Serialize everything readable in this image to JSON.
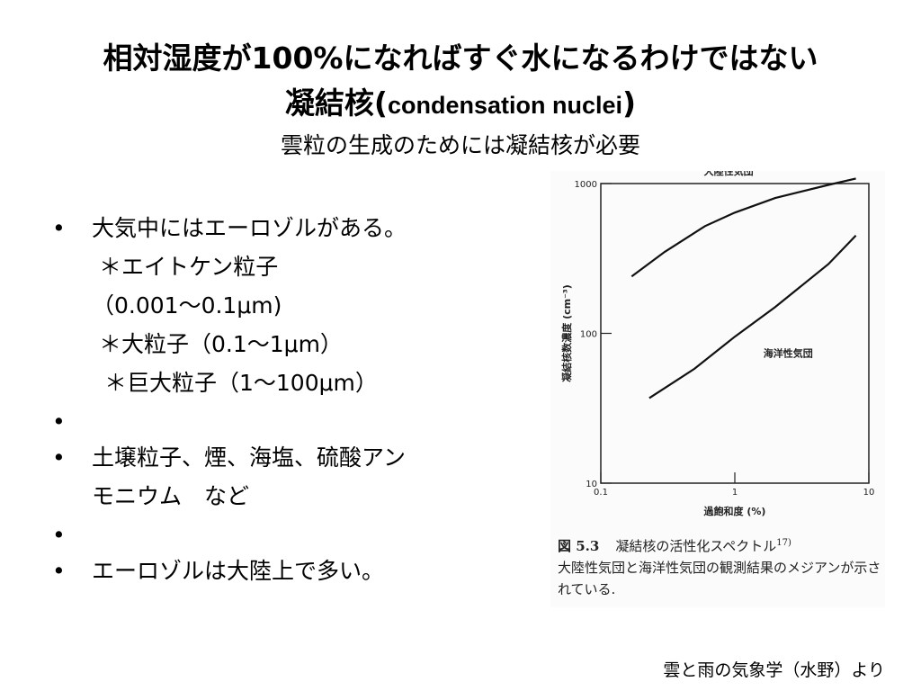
{
  "title_line1": "相対湿度が100%になればすぐ水になるわけではない",
  "title_line2_ja": "凝結核(",
  "title_line2_en": "condensation nuclei",
  "title_line2_close": ")",
  "subtitle": "雲粒の生成のためには凝結核が必要",
  "bullets": [
    {
      "lines": [
        "大気中にはエーロゾルがある。",
        "＊エイトケン粒子",
        "（0.001～0.1μm)",
        "＊大粒子（0.1～1μm）",
        "＊巨大粒子（1～100μm）"
      ]
    },
    {
      "lines": [
        "土壌粒子、煙、海塩、硫酸アン",
        "モニウム　など"
      ]
    },
    {
      "lines": [
        "エーロゾルは大陸上で多い。"
      ]
    }
  ],
  "figure": {
    "caption_number": "図 5.3",
    "caption_title": "凝結核の活性化スペクトル",
    "caption_ref": "17)",
    "caption_body": "大陸性気団と海洋性気団の観測結果のメジアンが示されている."
  },
  "chart_data": {
    "type": "line",
    "xlabel": "過飽和度 (%)",
    "ylabel": "凝結核数濃度 (cm⁻³)",
    "x_scale": "log",
    "y_scale": "log",
    "xlim": [
      0.1,
      10
    ],
    "ylim": [
      10,
      1000
    ],
    "x_ticks": [
      {
        "value": 0.1,
        "label": "0.1"
      },
      {
        "value": 1,
        "label": "1"
      },
      {
        "value": 10,
        "label": "10"
      }
    ],
    "y_ticks": [
      {
        "value": 10,
        "label": "10"
      },
      {
        "value": 100,
        "label": "100"
      },
      {
        "value": 1000,
        "label": "1000"
      }
    ],
    "grid": false,
    "series": [
      {
        "name": "大陸性気団",
        "points": [
          [
            0.17,
            240
          ],
          [
            0.3,
            350
          ],
          [
            0.6,
            520
          ],
          [
            1.0,
            640
          ],
          [
            2.0,
            800
          ],
          [
            5.0,
            980
          ],
          [
            8.0,
            1080
          ]
        ]
      },
      {
        "name": "海洋性気団",
        "points": [
          [
            0.23,
            37
          ],
          [
            0.5,
            58
          ],
          [
            1.0,
            95
          ],
          [
            2.0,
            150
          ],
          [
            5.0,
            290
          ],
          [
            8.0,
            450
          ]
        ]
      }
    ]
  },
  "source": "雲と雨の気象学（水野）より"
}
